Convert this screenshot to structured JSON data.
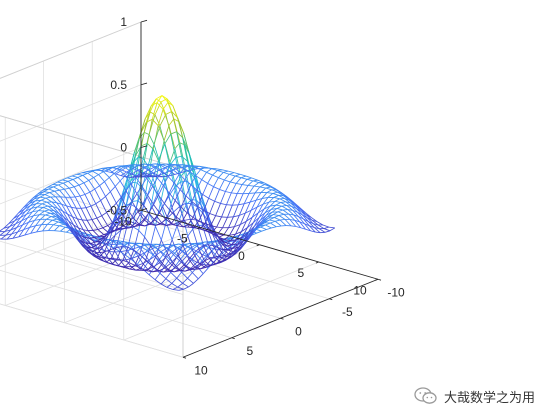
{
  "chart_data": {
    "type": "surface-mesh",
    "function": "sin(r)/r, r = sqrt(x^2 + y^2)",
    "x": [
      -8,
      -7.5,
      -7,
      -6.5,
      -6,
      -5.5,
      -5,
      -4.5,
      -4,
      -3.5,
      -3,
      -2.5,
      -2,
      -1.5,
      -1,
      -0.5,
      0,
      0.5,
      1,
      1.5,
      2,
      2.5,
      3,
      3.5,
      4,
      4.5,
      5,
      5.5,
      6,
      6.5,
      7,
      7.5,
      8
    ],
    "y": [
      -8,
      -7.5,
      -7,
      -6.5,
      -6,
      -5.5,
      -5,
      -4.5,
      -4,
      -3.5,
      -3,
      -2.5,
      -2,
      -1.5,
      -1,
      -0.5,
      0,
      0.5,
      1,
      1.5,
      2,
      2.5,
      3,
      3.5,
      4,
      4.5,
      5,
      5.5,
      6,
      6.5,
      7,
      7.5,
      8
    ],
    "zmax": 1,
    "zmin_approx": -0.22,
    "xlim": [
      -10,
      10
    ],
    "ylim": [
      -10,
      10
    ],
    "zlim": [
      -0.5,
      1
    ],
    "xticks": [
      "-10",
      "-5",
      "0",
      "5",
      "10"
    ],
    "yticks": [
      "-10",
      "-5",
      "0",
      "5",
      "10"
    ],
    "zticks": [
      "-0.5",
      "0",
      "0.5",
      "1"
    ],
    "colormap": "parula",
    "colormap_stops": [
      "#3e26a8",
      "#4770f7",
      "#2db6e8",
      "#1ec0a8",
      "#a6c42e",
      "#f9fb0e"
    ],
    "grid": true,
    "box": "outline",
    "grid_color": "#e0e0e0",
    "box_color": "#d0d0d0",
    "axis_color": "#262626"
  },
  "watermark": {
    "text": "大哉数学之为用",
    "icon": "wechat-icon"
  }
}
